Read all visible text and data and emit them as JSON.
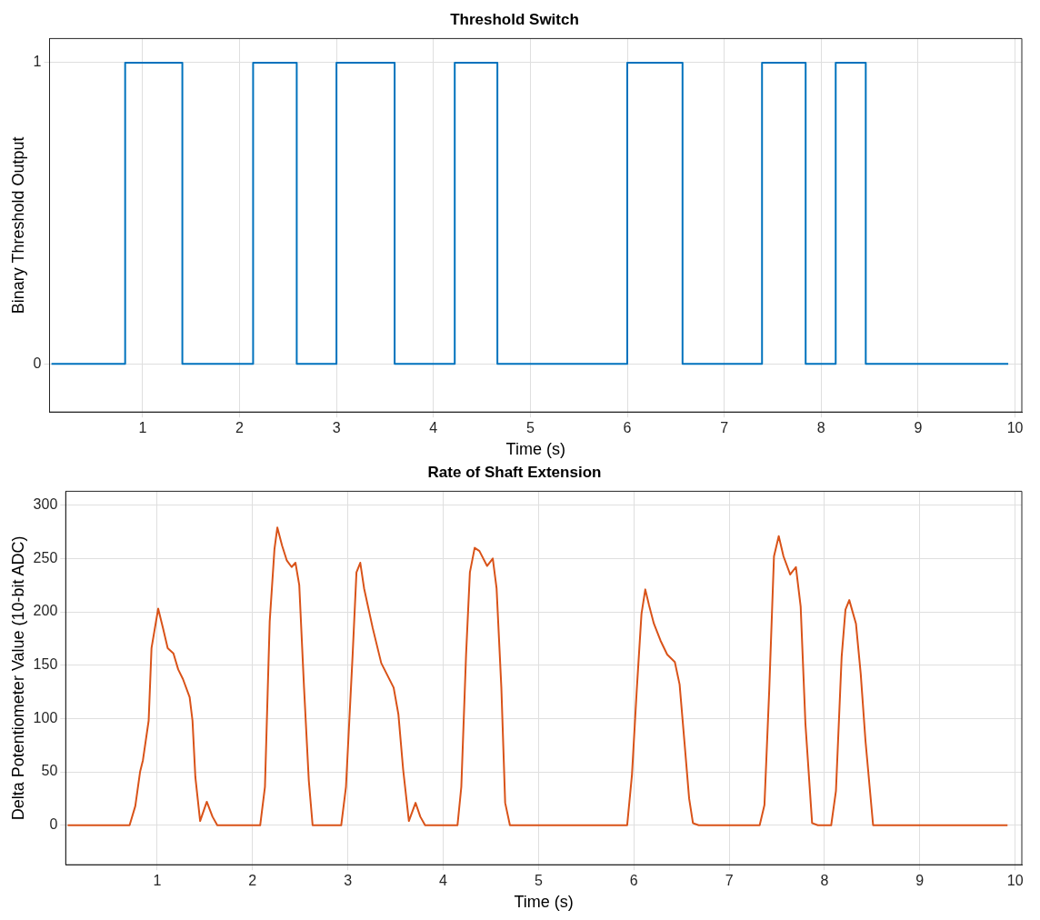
{
  "chart_data": [
    {
      "type": "step",
      "title": "Threshold Switch",
      "xlabel": "Time (s)",
      "ylabel": "Binary Threshold Output",
      "xlim": [
        0.04,
        10.07
      ],
      "ylim": [
        -0.16,
        1.08
      ],
      "xticks": [
        1,
        2,
        3,
        4,
        5,
        6,
        7,
        8,
        9,
        10
      ],
      "yticks": [
        0,
        1
      ],
      "grid": true,
      "marker": "none",
      "line_style": "solid",
      "series": [
        {
          "color": "#0072bd",
          "x": [
            0.06,
            0.82,
            1.41,
            2.14,
            2.59,
            3.0,
            3.6,
            4.22,
            4.66,
            6.0,
            6.57,
            7.39,
            7.84,
            8.15,
            8.46,
            9.93
          ],
          "values": [
            0,
            1,
            0,
            1,
            0,
            1,
            0,
            1,
            0,
            1,
            0,
            1,
            0,
            1,
            0,
            0
          ]
        }
      ]
    },
    {
      "type": "line",
      "title": "Rate of Shaft Extension",
      "xlabel": "Time (s)",
      "ylabel": "Delta Potentiometer Value (10-bit ADC)",
      "xlim": [
        0.04,
        10.07
      ],
      "ylim": [
        -37,
        313
      ],
      "xticks": [
        1,
        2,
        3,
        4,
        5,
        6,
        7,
        8,
        9,
        10
      ],
      "yticks": [
        0,
        50,
        100,
        150,
        200,
        250,
        300
      ],
      "grid": true,
      "marker": "none",
      "line_style": "solid",
      "series": [
        {
          "color": "#d95319",
          "x": [
            0.06,
            0.71,
            0.77,
            0.82,
            0.85,
            0.91,
            0.94,
            1.01,
            1.06,
            1.11,
            1.17,
            1.22,
            1.27,
            1.34,
            1.37,
            1.4,
            1.45,
            1.52,
            1.58,
            1.63,
            2.08,
            2.13,
            2.18,
            2.23,
            2.26,
            2.31,
            2.36,
            2.41,
            2.45,
            2.49,
            2.54,
            2.59,
            2.63,
            2.93,
            2.98,
            3.05,
            3.09,
            3.13,
            3.17,
            3.26,
            3.35,
            3.48,
            3.53,
            3.58,
            3.64,
            3.71,
            3.76,
            3.81,
            4.15,
            4.19,
            4.24,
            4.28,
            4.33,
            4.38,
            4.46,
            4.52,
            4.56,
            4.61,
            4.65,
            4.7,
            5.93,
            5.98,
            6.03,
            6.08,
            6.12,
            6.16,
            6.21,
            6.28,
            6.35,
            6.43,
            6.48,
            6.53,
            6.58,
            6.62,
            6.68,
            7.32,
            7.37,
            7.42,
            7.47,
            7.52,
            7.57,
            7.64,
            7.7,
            7.75,
            7.8,
            7.87,
            7.93,
            8.07,
            8.12,
            8.18,
            8.22,
            8.26,
            8.33,
            8.38,
            8.43,
            8.51,
            9.92
          ],
          "values": [
            0,
            0,
            18,
            50,
            61,
            98,
            166,
            203,
            185,
            166,
            161,
            146,
            137,
            120,
            98,
            45,
            4,
            22,
            8,
            0,
            0,
            36,
            191,
            259,
            279,
            262,
            248,
            242,
            246,
            225,
            129,
            42,
            0,
            0,
            36,
            160,
            237,
            246,
            222,
            185,
            152,
            129,
            104,
            52,
            4,
            21,
            8,
            0,
            0,
            36,
            160,
            237,
            260,
            257,
            243,
            250,
            222,
            129,
            21,
            0,
            0,
            47,
            126,
            198,
            221,
            206,
            189,
            173,
            160,
            153,
            132,
            79,
            25,
            2,
            0,
            0,
            19,
            126,
            252,
            271,
            252,
            235,
            242,
            205,
            95,
            2,
            0,
            0,
            32,
            158,
            202,
            211,
            189,
            142,
            79,
            0,
            0
          ]
        }
      ]
    }
  ]
}
